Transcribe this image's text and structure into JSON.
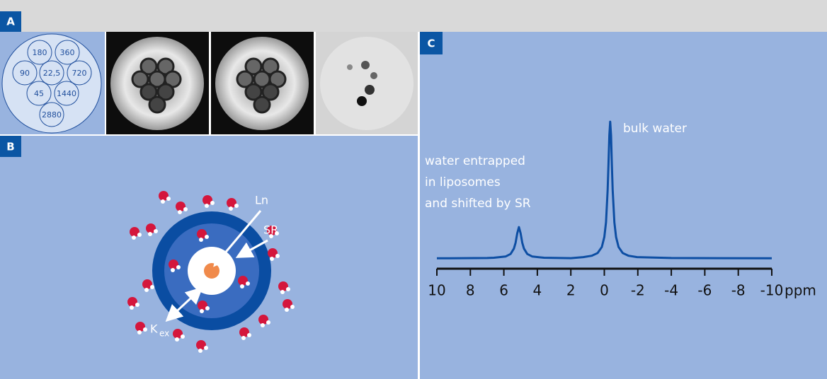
{
  "panel_labels": [
    "A",
    "B",
    "C"
  ],
  "panel_a": {
    "phantom_labels": [
      "180",
      "360",
      "90",
      "22,5",
      "720",
      "45",
      "1440",
      "2880"
    ]
  },
  "panel_b": {
    "labels": {
      "ln": "Ln",
      "sr": "SR",
      "k": "K",
      "k_sub": "ex"
    }
  },
  "chart_data": {
    "type": "line",
    "x_label": "ppm",
    "annotations": {
      "bulk": "bulk water",
      "entrapped": [
        "water entrapped",
        "in liposomes",
        "and shifted by SR"
      ]
    },
    "color": "#0d4ea3",
    "xlim": [
      10,
      -10
    ],
    "xticks": [
      10,
      8,
      6,
      4,
      2,
      0,
      -2,
      -4,
      -6,
      -8,
      -10
    ],
    "ylim": [
      0,
      100
    ],
    "x": [
      10,
      7,
      6.6,
      5.9,
      5.6,
      5.4,
      5.3,
      5.2,
      5.1,
      5.0,
      4.9,
      4.8,
      4.6,
      4.3,
      3.6,
      2,
      1.25,
      0.75,
      0.4,
      0.15,
      0,
      -0.1,
      -0.2,
      -0.25,
      -0.3,
      -0.35,
      -0.4,
      -0.45,
      -0.5,
      -0.6,
      -0.7,
      -0.85,
      -1.1,
      -1.45,
      -1.95,
      -4,
      -10
    ],
    "values": [
      7,
      7.2,
      7.4,
      8.2,
      9.9,
      13.5,
      17.5,
      23.8,
      28,
      23.8,
      17.5,
      13.5,
      9.9,
      8.2,
      7.4,
      7.1,
      7.8,
      8.7,
      10.5,
      14.6,
      21.3,
      31.3,
      53,
      70.7,
      89.8,
      99,
      89.8,
      70.7,
      53,
      31.3,
      21.3,
      14.6,
      10.5,
      8.7,
      7.8,
      7.2,
      7
    ]
  }
}
